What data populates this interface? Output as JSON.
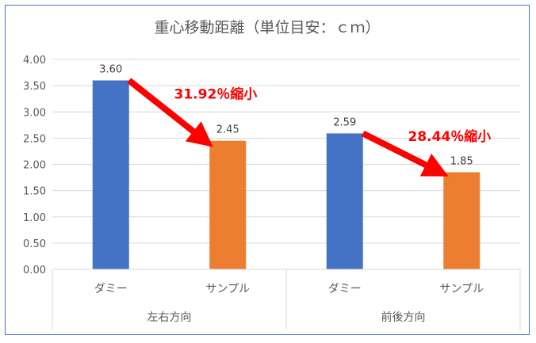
{
  "chart_data": {
    "type": "bar",
    "title": "重心移動距離（単位目安：ｃｍ）",
    "ylim": [
      0,
      4
    ],
    "y_ticks": [
      "0.00",
      "0.50",
      "1.00",
      "1.50",
      "2.00",
      "2.50",
      "3.00",
      "3.50",
      "4.00"
    ],
    "grid": true,
    "groups": [
      {
        "label": "左右方向",
        "bars": [
          {
            "category": "ダミー",
            "value": 3.6,
            "label": "3.60",
            "color": "#4472c4"
          },
          {
            "category": "サンプル",
            "value": 2.45,
            "label": "2.45",
            "color": "#ed7d31"
          }
        ],
        "annotation": "31.92％縮小"
      },
      {
        "label": "前後方向",
        "bars": [
          {
            "category": "ダミー",
            "value": 2.59,
            "label": "2.59",
            "color": "#4472c4"
          },
          {
            "category": "サンプル",
            "value": 1.85,
            "label": "1.85",
            "color": "#ed7d31"
          }
        ],
        "annotation": "28.44％縮小"
      }
    ],
    "arrow_color": "#ff0000"
  }
}
